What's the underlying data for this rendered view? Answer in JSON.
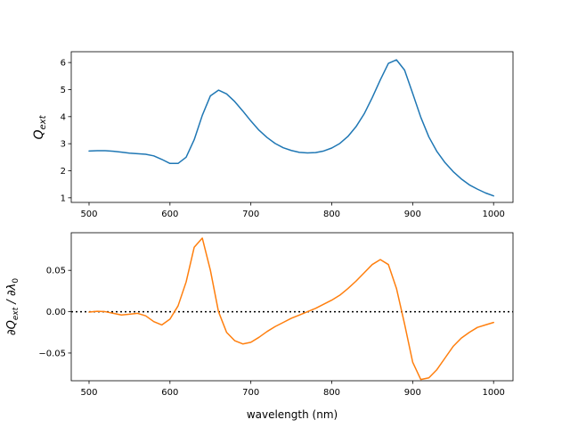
{
  "chart_data": [
    {
      "type": "line",
      "panel": "top",
      "title": "",
      "xlabel": "",
      "ylabel": "Q_ext",
      "ylabel_main": "Q",
      "ylabel_sub": "ext",
      "xlim": [
        478,
        1024
      ],
      "ylim": [
        0.83,
        6.4
      ],
      "grid": false,
      "xticks": [
        500,
        600,
        700,
        800,
        900,
        1000
      ],
      "xtick_labels": [
        "500",
        "600",
        "700",
        "800",
        "900",
        "1000"
      ],
      "yticks": [
        1,
        2,
        3,
        4,
        5,
        6
      ],
      "ytick_labels": [
        "1",
        "2",
        "3",
        "4",
        "5",
        "6"
      ],
      "series": [
        {
          "name": "Q_ext",
          "color": "#1f77b4",
          "x": [
            500,
            510,
            520,
            530,
            540,
            550,
            560,
            570,
            580,
            590,
            600,
            610,
            620,
            630,
            640,
            650,
            660,
            670,
            680,
            690,
            700,
            710,
            720,
            730,
            740,
            750,
            760,
            770,
            780,
            790,
            800,
            810,
            820,
            830,
            840,
            850,
            860,
            870,
            880,
            890,
            900,
            910,
            920,
            930,
            940,
            950,
            960,
            970,
            980,
            990,
            1000
          ],
          "y": [
            2.73,
            2.74,
            2.74,
            2.72,
            2.69,
            2.65,
            2.63,
            2.61,
            2.55,
            2.42,
            2.27,
            2.27,
            2.5,
            3.15,
            4.05,
            4.77,
            4.98,
            4.84,
            4.56,
            4.21,
            3.84,
            3.5,
            3.23,
            3.01,
            2.85,
            2.75,
            2.68,
            2.66,
            2.67,
            2.73,
            2.84,
            3.01,
            3.27,
            3.63,
            4.1,
            4.7,
            5.36,
            5.97,
            6.1,
            5.72,
            4.86,
            3.98,
            3.25,
            2.71,
            2.3,
            1.97,
            1.7,
            1.48,
            1.32,
            1.18,
            1.07
          ]
        }
      ]
    },
    {
      "type": "line",
      "panel": "bottom",
      "title": "",
      "xlabel": "wavelength (nm)",
      "ylabel": "∂Q_ext / ∂λ_0",
      "ylabel_parts": {
        "d1": "∂Q",
        "sub1": "ext",
        "mid": " / ∂λ",
        "sub2": "0"
      },
      "xlim": [
        478,
        1024
      ],
      "ylim": [
        -0.0835,
        0.0955
      ],
      "grid": false,
      "xticks": [
        500,
        600,
        700,
        800,
        900,
        1000
      ],
      "xtick_labels": [
        "500",
        "600",
        "700",
        "800",
        "900",
        "1000"
      ],
      "yticks": [
        -0.05,
        0.0,
        0.05
      ],
      "ytick_labels": [
        "−0.05",
        "0.00",
        "0.05"
      ],
      "reference_line": {
        "y": 0,
        "style": "dotted",
        "color": "#000000"
      },
      "series": [
        {
          "name": "dQ_ext/dλ0",
          "color": "#ff7f0e",
          "x": [
            500,
            510,
            520,
            530,
            540,
            550,
            560,
            570,
            580,
            590,
            600,
            610,
            620,
            630,
            640,
            650,
            660,
            670,
            680,
            690,
            700,
            710,
            720,
            730,
            740,
            750,
            760,
            770,
            780,
            790,
            800,
            810,
            820,
            830,
            840,
            850,
            860,
            870,
            880,
            890,
            900,
            910,
            920,
            930,
            940,
            950,
            960,
            970,
            980,
            990,
            1000
          ],
          "y": [
            -0.0005,
            0.0005,
            0.0,
            -0.002,
            -0.004,
            -0.003,
            -0.002,
            -0.005,
            -0.012,
            -0.016,
            -0.009,
            0.007,
            0.036,
            0.078,
            0.089,
            0.05,
            0.0,
            -0.025,
            -0.035,
            -0.039,
            -0.037,
            -0.031,
            -0.024,
            -0.018,
            -0.013,
            -0.008,
            -0.004,
            0.0,
            0.004,
            0.009,
            0.014,
            0.02,
            0.028,
            0.037,
            0.047,
            0.057,
            0.063,
            0.057,
            0.028,
            -0.015,
            -0.061,
            -0.082,
            -0.08,
            -0.07,
            -0.056,
            -0.042,
            -0.032,
            -0.025,
            -0.019,
            -0.016,
            -0.013
          ]
        }
      ]
    }
  ]
}
